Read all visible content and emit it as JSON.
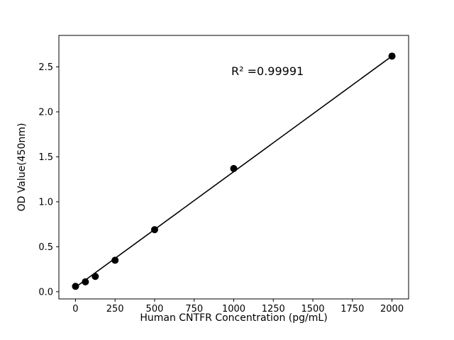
{
  "figure": {
    "background": "#ffffff"
  },
  "chart_data": {
    "type": "scatter",
    "title": "",
    "xlabel": "Human CNTFR Concentration (pg/mL)",
    "ylabel": "OD Value(450nm)",
    "x": [
      0,
      62.5,
      125,
      250,
      500,
      1000,
      2000
    ],
    "y": [
      0.06,
      0.11,
      0.17,
      0.35,
      0.69,
      1.37,
      2.62
    ],
    "line": true,
    "trendline": {
      "x1": 0,
      "y1": 0.05,
      "x2": 2000,
      "y2": 2.62
    },
    "marker_color": "#000000",
    "line_color": "#000000",
    "xlim": [
      -105,
      2105
    ],
    "ylim": [
      -0.08,
      2.85
    ],
    "xticks": {
      "values": [
        0,
        250,
        500,
        750,
        1000,
        1250,
        1500,
        1750,
        2000
      ],
      "labels": [
        "0",
        "250",
        "500",
        "750",
        "1000",
        "1250",
        "1500",
        "1750",
        "2000"
      ]
    },
    "yticks": {
      "values": [
        0.0,
        0.5,
        1.0,
        1.5,
        2.0,
        2.5
      ],
      "labels": [
        "0.0",
        "0.5",
        "1.0",
        "1.5",
        "2.0",
        "2.5"
      ]
    },
    "grid": false,
    "legend": null,
    "annotation": {
      "text": "R² =0.99991"
    }
  }
}
